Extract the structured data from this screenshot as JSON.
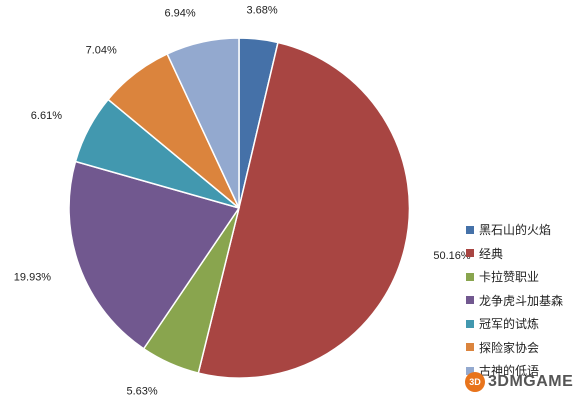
{
  "chart_data": {
    "type": "pie",
    "categories": [
      "黑石山的火焰",
      "经典",
      "卡拉赞职业",
      "龙争虎斗加基森",
      "冠军的试炼",
      "探险家协会",
      "古神的低语"
    ],
    "values": [
      3.68,
      50.16,
      5.63,
      19.93,
      6.61,
      7.04,
      6.94
    ],
    "labels": [
      "3.68%",
      "50.16%",
      "5.63%",
      "19.93%",
      "6.61%",
      "7.04%",
      "6.94%"
    ],
    "colors": [
      "#4571a8",
      "#a84542",
      "#89a54e",
      "#71588f",
      "#4298af",
      "#db843d",
      "#93a9cf"
    ],
    "legend_position": "right",
    "start_angle": "top, clockwise"
  },
  "watermark": {
    "logo_text": "3D",
    "text": "3DMGAME"
  }
}
